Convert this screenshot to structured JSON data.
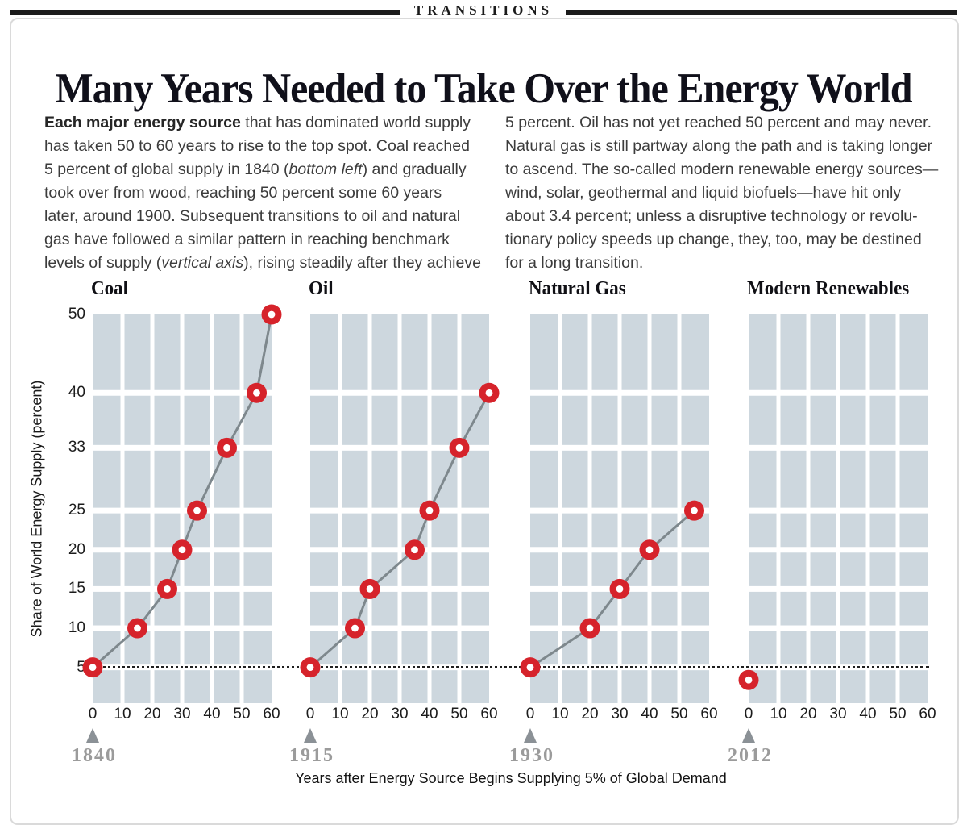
{
  "kicker": "TRANSITIONS",
  "title": "Many Years Needed to Take Over the Energy World",
  "intro": {
    "left_segments": [
      {
        "t": "Each major energy source",
        "b": true
      },
      {
        "t": " that has dominated world supply\nhas taken 50 to 60 years to rise to the top spot. Coal reached\n5 percent of global supply in 1840 ("
      },
      {
        "t": "bottom left",
        "i": true
      },
      {
        "t": ") and gradually\ntook over from wood, reaching 50 percent some 60 years\nlater, around 1900. Subsequent transitions to oil and natural\ngas have followed a similar pattern in reaching benchmark\nlevels of supply ("
      },
      {
        "t": "vertical axis",
        "i": true
      },
      {
        "t": "), rising steadily after they achieve"
      }
    ],
    "right_text": "5 percent. Oil has not yet reached 50 percent and may never.\nNatural gas is still partway along the path and is taking longer\nto ascend. The so-called modern renewable energy sources—\nwind, solar, geothermal and liquid biofuels—have hit only\nabout 3.4 percent; unless a disruptive technology or revolu-\ntionary policy speeds up change, they, too, may be destined\nfor a long transition."
  },
  "chart_data": {
    "type": "line",
    "title": "Many Years Needed to Take Over the Energy World",
    "xlabel": "Years after Energy Source Begins Supplying 5% of Global Demand",
    "ylabel": "Share of World Energy Supply (percent)",
    "x_ticks": [
      0,
      10,
      20,
      30,
      40,
      50,
      60
    ],
    "y_ticks": [
      50,
      40,
      33,
      25,
      20,
      15,
      10,
      5
    ],
    "x_range": [
      0,
      60
    ],
    "y_range": [
      0.44,
      50
    ],
    "threshold_y": 5,
    "grid": "on",
    "panels": [
      {
        "name": "Coal",
        "start_year": "1840",
        "points": [
          [
            0,
            5
          ],
          [
            15,
            10
          ],
          [
            25,
            15
          ],
          [
            30,
            20
          ],
          [
            35,
            25
          ],
          [
            45,
            33
          ],
          [
            55,
            40
          ],
          [
            60,
            50
          ]
        ]
      },
      {
        "name": "Oil",
        "start_year": "1915",
        "points": [
          [
            0,
            5
          ],
          [
            15,
            10
          ],
          [
            20,
            15
          ],
          [
            35,
            20
          ],
          [
            40,
            25
          ],
          [
            50,
            33
          ],
          [
            60,
            40
          ]
        ]
      },
      {
        "name": "Natural Gas",
        "start_year": "1930",
        "points": [
          [
            0,
            5
          ],
          [
            20,
            10
          ],
          [
            30,
            15
          ],
          [
            40,
            20
          ],
          [
            55,
            25
          ]
        ]
      },
      {
        "name": "Modern Renewables",
        "start_year": "2012",
        "points": [
          [
            0,
            3.4
          ]
        ]
      }
    ]
  },
  "colors": {
    "grid_cell": "#cdd7de",
    "marker": "#d6232b",
    "marker_hole": "#ffffff",
    "trend_line": "#7e888d",
    "threshold_dots": "#1f1f1f",
    "year_label": "#9b9b9b",
    "triangle": "#8b9196",
    "kicker_rule": "#1b1b1b"
  }
}
